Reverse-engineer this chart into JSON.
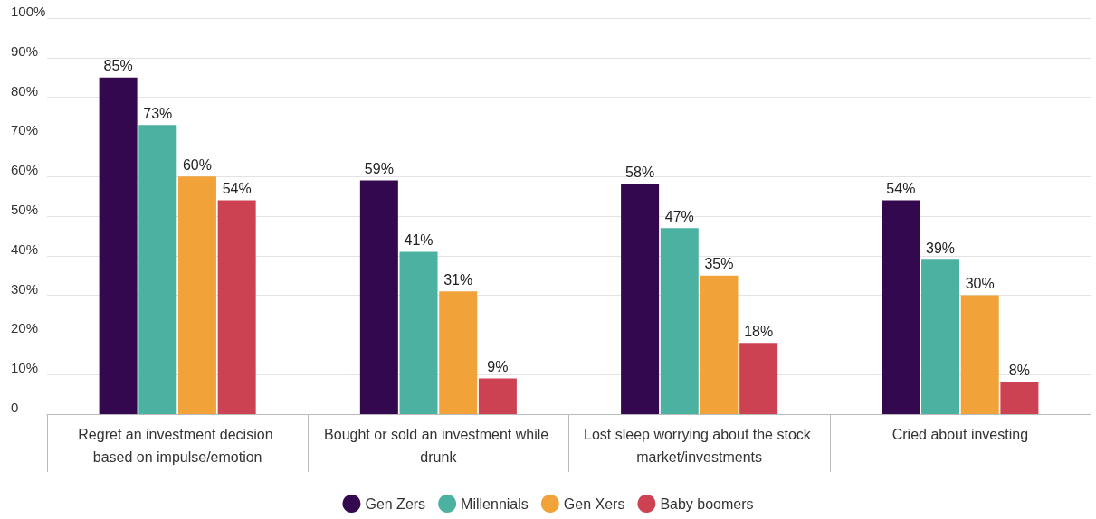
{
  "chart_data": {
    "type": "bar",
    "categories": [
      "Regret an investment decision based on impulse/emotion",
      "Bought or sold an investment while drunk",
      "Lost sleep worrying about the stock market/investments",
      "Cried about investing"
    ],
    "series": [
      {
        "name": "Gen Zers",
        "color": "#34084f",
        "values": [
          85,
          59,
          58,
          54
        ],
        "value_labels": [
          "85%",
          "59%",
          "58%",
          "54%"
        ]
      },
      {
        "name": "Millennials",
        "color": "#4bb1a0",
        "values": [
          73,
          41,
          47,
          39
        ],
        "value_labels": [
          "73%",
          "41%",
          "47%",
          "39%"
        ]
      },
      {
        "name": "Gen Xers",
        "color": "#f1a33a",
        "values": [
          60,
          31,
          35,
          30
        ],
        "value_labels": [
          "60%",
          "31%",
          "35%",
          "30%"
        ]
      },
      {
        "name": "Baby boomers",
        "color": "#cc4253",
        "values": [
          54,
          9,
          18,
          8
        ],
        "value_labels": [
          "54%",
          "9%",
          "18%",
          "8%"
        ]
      }
    ],
    "ylim": [
      0,
      100
    ],
    "yticks": [
      0,
      {
        "value": 10,
        "label": "10%"
      },
      {
        "value": 20,
        "label": "20%"
      },
      {
        "value": 30,
        "label": "30%"
      },
      {
        "value": 40,
        "label": "40%"
      },
      {
        "value": 50,
        "label": "50%"
      },
      {
        "value": 60,
        "label": "60%"
      },
      {
        "value": 70,
        "label": "70%"
      },
      {
        "value": 80,
        "label": "80%"
      },
      {
        "value": 90,
        "label": "90%"
      },
      {
        "value": 100,
        "label": "100%"
      }
    ],
    "grid": "y",
    "legend": "bottom"
  }
}
